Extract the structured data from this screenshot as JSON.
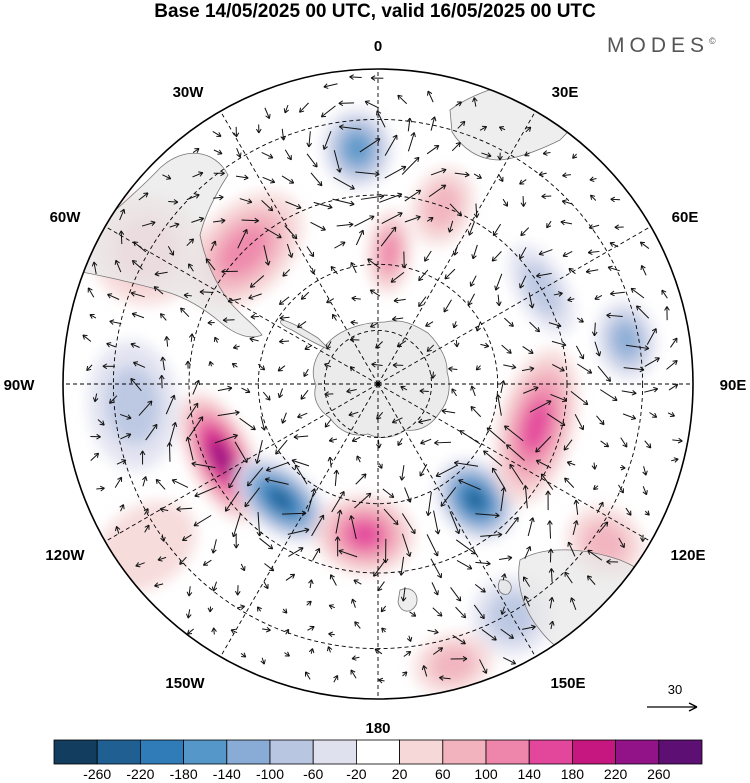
{
  "title": "Base 14/05/2025 00 UTC, valid 16/05/2025 00 UTC",
  "brand": "MODES",
  "brand_mark": "©",
  "map": {
    "projection": "south-polar-stereographic",
    "longitude_labels": [
      "0",
      "30E",
      "60E",
      "90E",
      "120E",
      "150E",
      "180",
      "150W",
      "120W",
      "90W",
      "60W",
      "30W"
    ],
    "continent_color": "#e8e8e8",
    "coast_color": "#777777"
  },
  "reference_vector": {
    "label": "30"
  },
  "colorbar": {
    "ticks": [
      "-260",
      "-220",
      "-180",
      "-140",
      "-100",
      "-60",
      "-20",
      "20",
      "60",
      "100",
      "140",
      "180",
      "220",
      "260"
    ],
    "colors": [
      "#133d5e",
      "#1f5f92",
      "#2f7cb8",
      "#5597c8",
      "#89acd6",
      "#b9c6e2",
      "#e0e1ef",
      "#ffffff",
      "#f6d8d8",
      "#f2b3bf",
      "#ee86ab",
      "#e2479c",
      "#c5177f",
      "#911387",
      "#5e0f73"
    ]
  },
  "anomalies": [
    {
      "lon": 355,
      "r": 0.75,
      "rx": 35,
      "ry": 40,
      "value": -160
    },
    {
      "lon": 20,
      "r": 0.6,
      "rx": 30,
      "ry": 40,
      "value": 60
    },
    {
      "lon": 5,
      "r": 0.42,
      "rx": 22,
      "ry": 42,
      "value": 100
    },
    {
      "lon": 315,
      "r": 0.6,
      "rx": 70,
      "ry": 45,
      "value": 100
    },
    {
      "lon": 300,
      "r": 0.85,
      "rx": 55,
      "ry": 55,
      "value": 60
    },
    {
      "lon": 265,
      "r": 0.78,
      "rx": 65,
      "ry": 45,
      "value": -60
    },
    {
      "lon": 245,
      "r": 0.55,
      "rx": 70,
      "ry": 32,
      "value": 220
    },
    {
      "lon": 220,
      "r": 0.48,
      "rx": 55,
      "ry": 32,
      "value": -220
    },
    {
      "lon": 185,
      "r": 0.48,
      "rx": 50,
      "ry": 40,
      "value": 140
    },
    {
      "lon": 140,
      "r": 0.48,
      "rx": 35,
      "ry": 45,
      "value": -220
    },
    {
      "lon": 105,
      "r": 0.52,
      "rx": 80,
      "ry": 38,
      "value": 140
    },
    {
      "lon": 80,
      "r": 0.8,
      "rx": 40,
      "ry": 30,
      "value": -100
    },
    {
      "lon": 60,
      "r": 0.6,
      "rx": 50,
      "ry": 25,
      "value": -60
    },
    {
      "lon": 150,
      "r": 0.85,
      "rx": 40,
      "ry": 40,
      "value": -60
    },
    {
      "lon": 125,
      "r": 0.88,
      "rx": 35,
      "ry": 40,
      "value": 60
    },
    {
      "lon": 165,
      "r": 0.92,
      "rx": 40,
      "ry": 30,
      "value": 60
    },
    {
      "lon": 235,
      "r": 0.9,
      "rx": 40,
      "ry": 55,
      "value": 20
    }
  ]
}
